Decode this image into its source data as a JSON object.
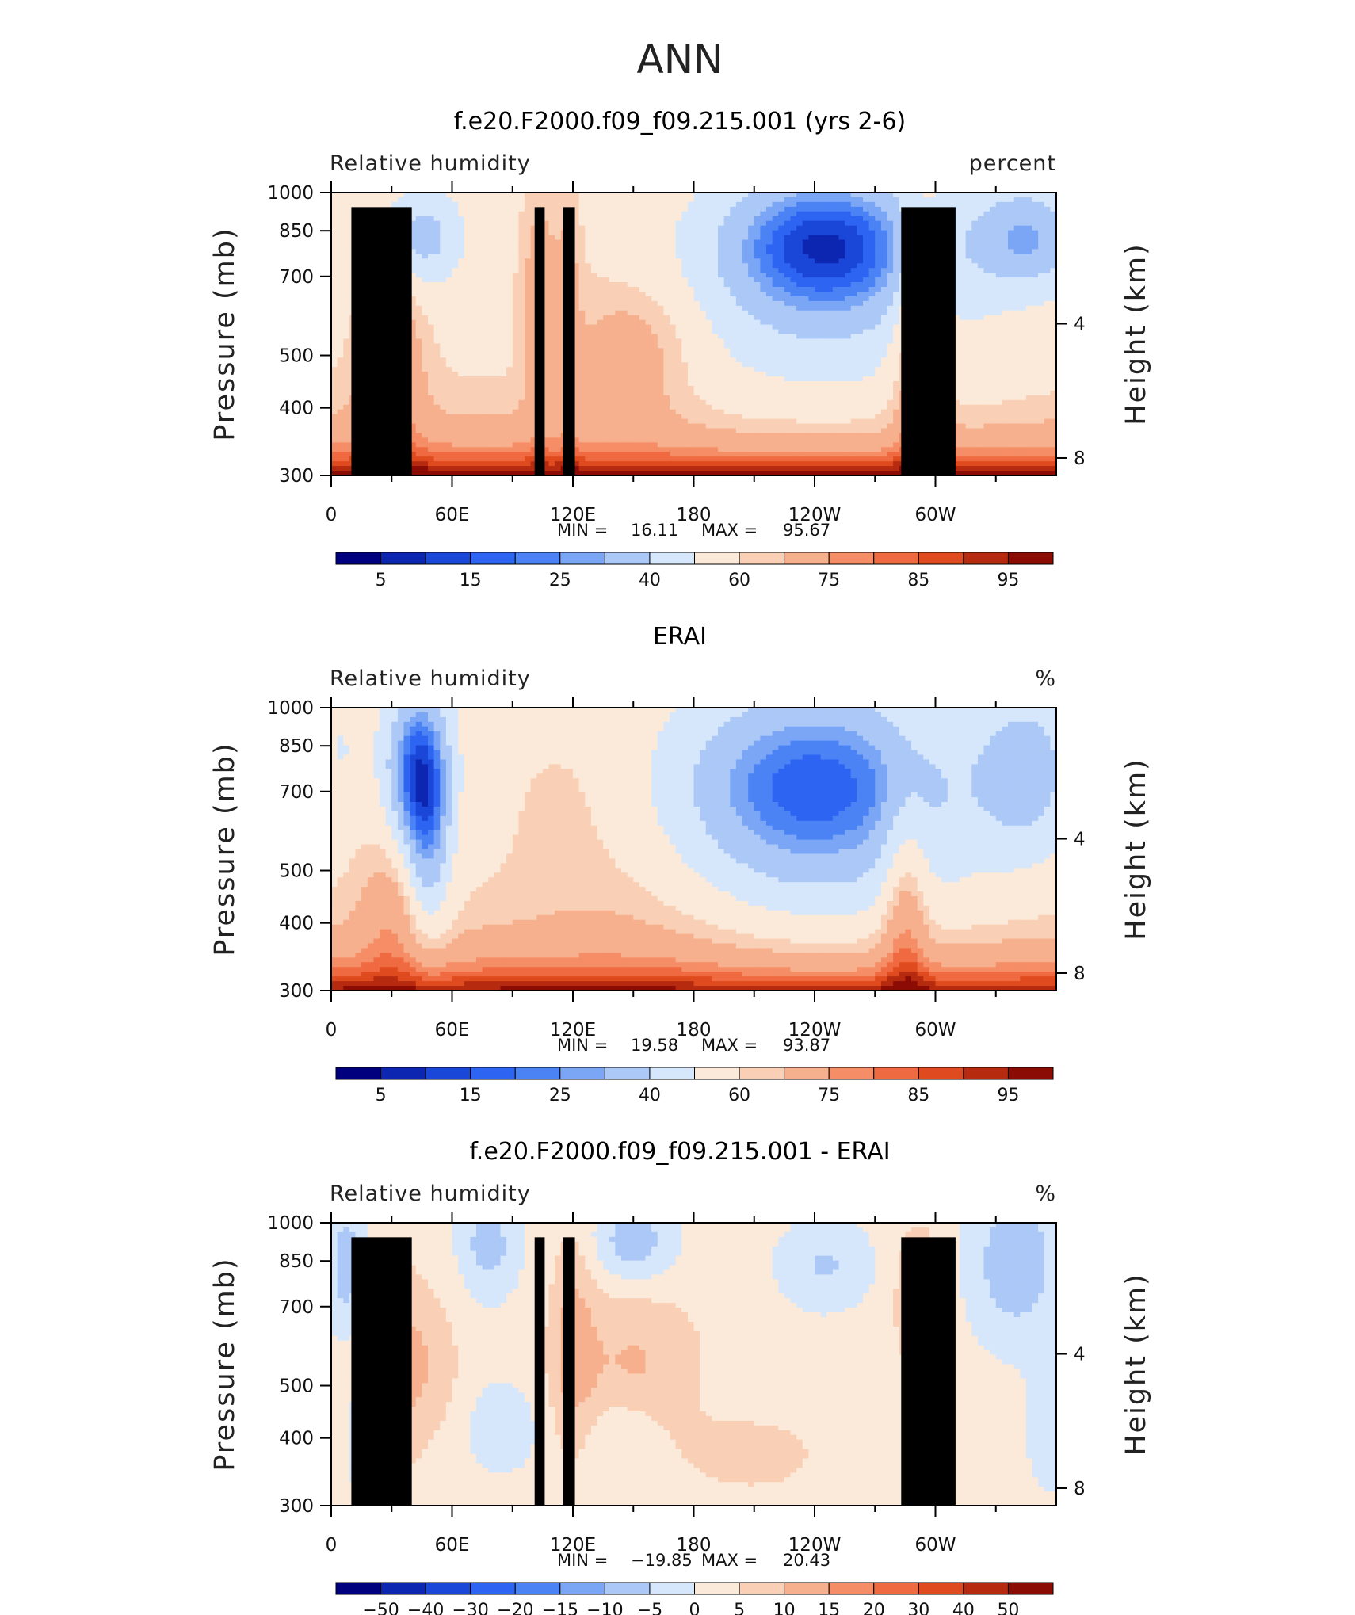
{
  "figure": {
    "season": "ANN",
    "colors": {
      "sequential": [
        "#00007f",
        "#0d26b2",
        "#1a47d8",
        "#2e64f2",
        "#4b83f5",
        "#7ba6f5",
        "#abc8f7",
        "#d7e7fb",
        "#fbead9",
        "#f9cfb5",
        "#f7b08e",
        "#f58d66",
        "#ef6a40",
        "#df4b1e",
        "#b62b0f",
        "#8b0b05"
      ],
      "land": "#000000"
    }
  },
  "chart_data": [
    {
      "type": "heatmap",
      "title": "f.e20.F2000.f09_f09.215.001 (yrs 2-6)",
      "subtitle_left": "Relative humidity",
      "subtitle_right": "percent",
      "ylabel": "Pressure (mb)",
      "ylabel_right": "Height (km)",
      "x_ticks": [
        "0",
        "60E",
        "120E",
        "180",
        "120W",
        "60W"
      ],
      "y_ticks": [
        "300",
        "400",
        "500",
        "700",
        "850",
        "1000"
      ],
      "y_ticks_right": [
        "8",
        "4"
      ],
      "y_scale": "log",
      "ylim": [
        1000,
        300
      ],
      "min_text": "MIN =",
      "min_value": "16.11",
      "max_text": "MAX =",
      "max_value": "95.67",
      "colorbar_labels": [
        "5",
        "15",
        "25",
        "40",
        "60",
        "75",
        "85",
        "95"
      ],
      "levels": [
        5,
        10,
        15,
        20,
        25,
        30,
        40,
        50,
        60,
        65,
        75,
        80,
        85,
        90,
        95
      ],
      "land_mask": true
    },
    {
      "type": "heatmap",
      "title": "ERAI",
      "subtitle_left": "Relative humidity",
      "subtitle_right": "%",
      "ylabel": "Pressure (mb)",
      "ylabel_right": "Height (km)",
      "x_ticks": [
        "0",
        "60E",
        "120E",
        "180",
        "120W",
        "60W"
      ],
      "y_ticks": [
        "300",
        "400",
        "500",
        "700",
        "850",
        "1000"
      ],
      "y_ticks_right": [
        "8",
        "4"
      ],
      "y_scale": "log",
      "ylim": [
        1000,
        300
      ],
      "min_text": "MIN =",
      "min_value": "19.58",
      "max_text": "MAX =",
      "max_value": "93.87",
      "colorbar_labels": [
        "5",
        "15",
        "25",
        "40",
        "60",
        "75",
        "85",
        "95"
      ],
      "levels": [
        5,
        10,
        15,
        20,
        25,
        30,
        40,
        50,
        60,
        65,
        75,
        80,
        85,
        90,
        95
      ],
      "land_mask": false
    },
    {
      "type": "heatmap",
      "title": "f.e20.F2000.f09_f09.215.001 - ERAI",
      "subtitle_left": "Relative humidity",
      "subtitle_right": "%",
      "ylabel": "Pressure (mb)",
      "ylabel_right": "Height (km)",
      "x_ticks": [
        "0",
        "60E",
        "120E",
        "180",
        "120W",
        "60W"
      ],
      "y_ticks": [
        "300",
        "400",
        "500",
        "700",
        "850",
        "1000"
      ],
      "y_ticks_right": [
        "8",
        "4"
      ],
      "y_scale": "log",
      "ylim": [
        1000,
        300
      ],
      "min_text": "MIN =",
      "min_value": "−19.85",
      "max_text": "MAX =",
      "max_value": "20.43",
      "colorbar_labels": [
        "−50",
        "−40",
        "−30",
        "−20",
        "−15",
        "−10",
        "−5",
        "0",
        "5",
        "10",
        "15",
        "20",
        "30",
        "40",
        "50"
      ],
      "levels": [
        -50,
        -40,
        -30,
        -20,
        -15,
        -10,
        -5,
        0,
        5,
        10,
        15,
        20,
        30,
        40,
        50
      ],
      "land_mask": true
    }
  ]
}
